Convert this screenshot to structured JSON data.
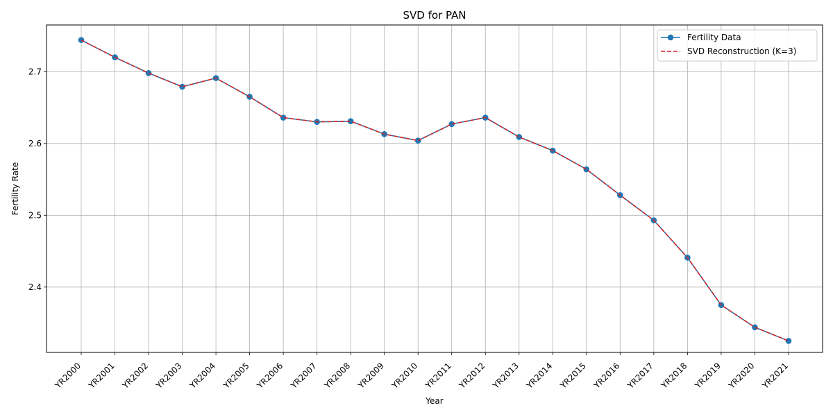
{
  "chart_data": {
    "type": "line",
    "title": "SVD for PAN",
    "xlabel": "Year",
    "ylabel": "Fertility Rate",
    "categories": [
      "YR2000",
      "YR2001",
      "YR2002",
      "YR2003",
      "YR2004",
      "YR2005",
      "YR2006",
      "YR2007",
      "YR2008",
      "YR2009",
      "YR2010",
      "YR2011",
      "YR2012",
      "YR2013",
      "YR2014",
      "YR2015",
      "YR2016",
      "YR2017",
      "YR2018",
      "YR2019",
      "YR2020",
      "YR2021"
    ],
    "ylim": [
      2.309,
      2.765
    ],
    "yticks": [
      2.4,
      2.5,
      2.6,
      2.7
    ],
    "ytick_labels": [
      "2.4",
      "2.5",
      "2.6",
      "2.7"
    ],
    "grid": true,
    "legend_position": "top-right",
    "series": [
      {
        "name": "Fertility Data",
        "color": "#1f77b4",
        "style": "solid-with-circle-markers",
        "values": [
          2.744,
          2.72,
          2.698,
          2.679,
          2.691,
          2.665,
          2.636,
          2.63,
          2.631,
          2.613,
          2.604,
          2.627,
          2.636,
          2.609,
          2.59,
          2.564,
          2.528,
          2.493,
          2.441,
          2.375,
          2.344,
          2.325
        ]
      },
      {
        "name": "SVD Reconstruction (K=3)",
        "color": "#d62728",
        "style": "dashed",
        "values": [
          2.744,
          2.72,
          2.698,
          2.679,
          2.691,
          2.665,
          2.636,
          2.63,
          2.631,
          2.613,
          2.604,
          2.627,
          2.636,
          2.609,
          2.59,
          2.564,
          2.528,
          2.493,
          2.441,
          2.375,
          2.344,
          2.325
        ]
      }
    ]
  }
}
